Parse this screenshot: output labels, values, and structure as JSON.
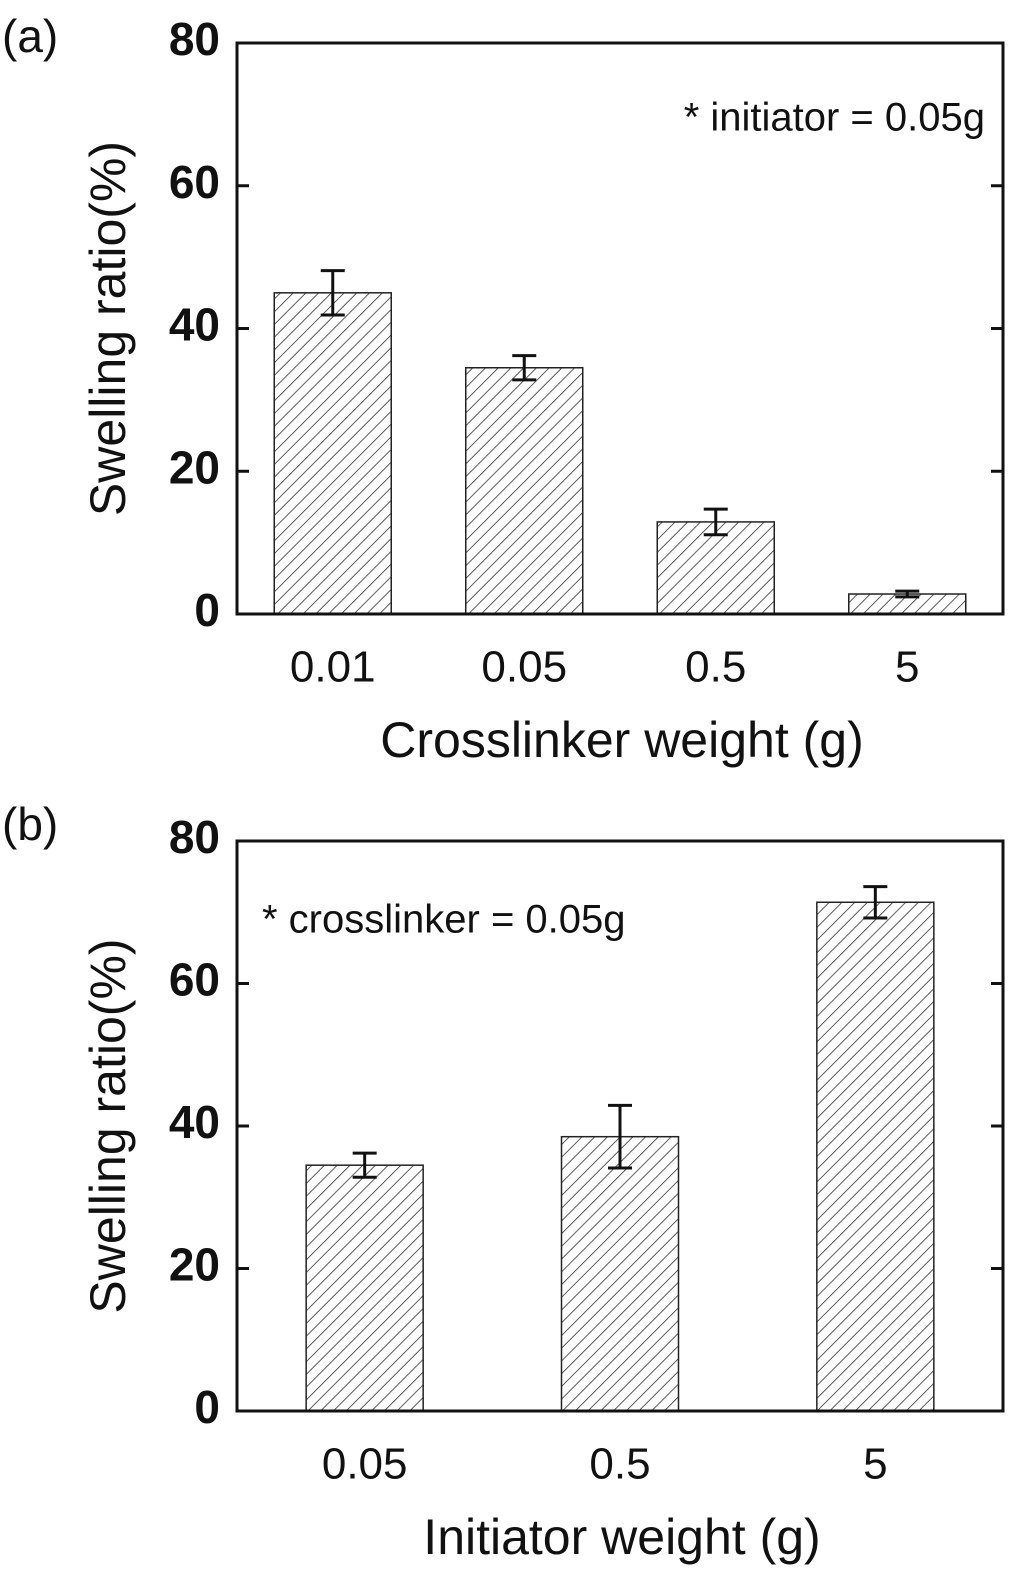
{
  "chart_data": [
    {
      "type": "bar",
      "panel_label": "(a)",
      "annotation": "* initiator = 0.05g",
      "xlabel": "Crosslinker weight (g)",
      "ylabel": "Swelling ratio(%)",
      "categories": [
        "0.01",
        "0.05",
        "0.5",
        "5"
      ],
      "values": [
        45,
        34.5,
        12.9,
        2.8
      ],
      "errors": [
        3.1,
        1.7,
        1.8,
        0.4
      ],
      "color": "#ffffff",
      "pattern": "hatch",
      "ylim": [
        0,
        80
      ],
      "yticks": [
        0,
        20,
        40,
        60,
        80
      ]
    },
    {
      "type": "bar",
      "panel_label": "(b)",
      "annotation": "* crosslinker = 0.05g",
      "xlabel": "Initiator weight (g)",
      "ylabel": "Swelling ratio(%)",
      "categories": [
        "0.05",
        "0.5",
        "5"
      ],
      "values": [
        34.5,
        38.5,
        71.4
      ],
      "errors": [
        1.7,
        4.4,
        2.2
      ],
      "color": "#ffffff",
      "pattern": "hatch",
      "ylim": [
        0,
        80
      ],
      "yticks": [
        0,
        20,
        40,
        60,
        80
      ]
    }
  ]
}
